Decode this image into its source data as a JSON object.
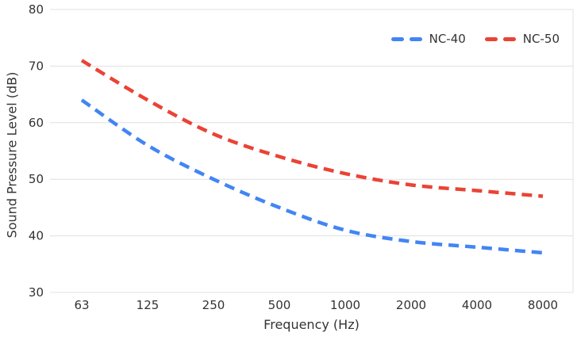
{
  "chart_data": {
    "type": "line",
    "line_style": "dashed",
    "curve": "smooth",
    "categories": [
      "63",
      "125",
      "250",
      "500",
      "1000",
      "2000",
      "4000",
      "8000"
    ],
    "series": [
      {
        "name": "NC-40",
        "color": "#4285F4",
        "values": [
          64,
          56,
          50,
          45,
          41,
          39,
          38,
          37
        ]
      },
      {
        "name": "NC-50",
        "color": "#EA4335",
        "values": [
          71,
          64,
          58,
          54,
          51,
          49,
          48,
          47
        ]
      }
    ],
    "title": "",
    "xlabel": "Frequency (Hz)",
    "ylabel": "Sound Pressure Level (dB)",
    "ylim": [
      30,
      80
    ],
    "yticks": [
      30,
      40,
      50,
      60,
      70,
      80
    ],
    "grid": "horizontal",
    "legend_position": "top-right"
  },
  "styles": {
    "background": "#FFFFFF",
    "grid_color": "#E0E0E0",
    "text_color": "#333333"
  }
}
